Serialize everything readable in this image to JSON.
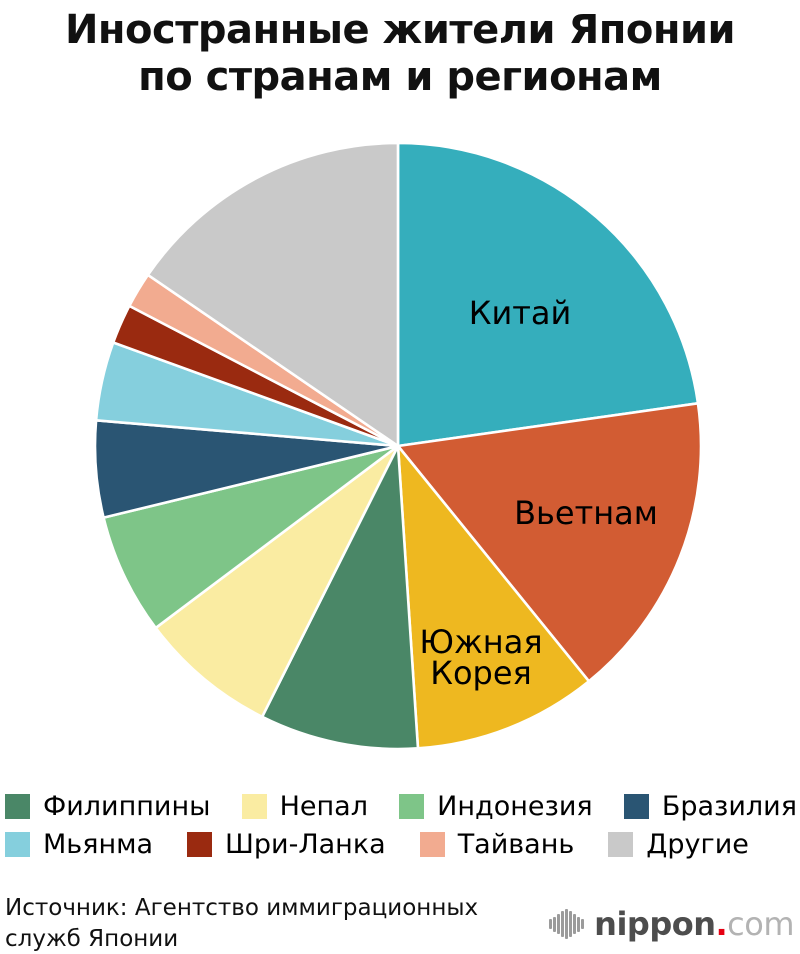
{
  "title": {
    "line1": "Иностранные жители Японии",
    "line2": "по странам и регионам"
  },
  "chart_data": {
    "type": "pie",
    "title": "Иностранные жители Японии по странам и регионам",
    "start_angle_deg": 0,
    "direction": "clockwise",
    "values_are": "percent, estimated from slice angles (no numbers printed on chart)",
    "slices": [
      {
        "label": "Китай",
        "value_pct": 22.75,
        "color": "#35aebc",
        "labeled_on_pie": true
      },
      {
        "label": "Вьетнам",
        "value_pct": 16.4,
        "color": "#d25c33",
        "labeled_on_pie": true
      },
      {
        "label": "Южная Корея",
        "value_pct": 9.8,
        "color": "#eeb820",
        "labeled_on_pie": true
      },
      {
        "label": "Филиппины",
        "value_pct": 8.45,
        "color": "#4a8767",
        "labeled_on_pie": false
      },
      {
        "label": "Непал",
        "value_pct": 7.35,
        "color": "#faeca2",
        "labeled_on_pie": false
      },
      {
        "label": "Индонезия",
        "value_pct": 6.45,
        "color": "#7ec588",
        "labeled_on_pie": false
      },
      {
        "label": "Бразилия",
        "value_pct": 5.15,
        "color": "#2a5573",
        "labeled_on_pie": false
      },
      {
        "label": "Мьянма",
        "value_pct": 4.2,
        "color": "#85cfdd",
        "labeled_on_pie": false
      },
      {
        "label": "Шри-Ланка",
        "value_pct": 2.1,
        "color": "#9a2a10",
        "labeled_on_pie": false
      },
      {
        "label": "Тайвань",
        "value_pct": 1.9,
        "color": "#f2ab90",
        "labeled_on_pie": false
      },
      {
        "label": "Другие",
        "value_pct": 15.45,
        "color": "#c9c9c9",
        "labeled_on_pie": false
      }
    ],
    "legend_position": "bottom",
    "source": "Источник: Агентство иммиграционных служб Японии"
  },
  "pie_labels": {
    "china": "Китай",
    "vietnam": "Вьетнам",
    "korea_line1": "Южная",
    "korea_line2": "Корея"
  },
  "legend": {
    "items": [
      {
        "label": "Филиппины",
        "color": "#4a8767"
      },
      {
        "label": "Непал",
        "color": "#faeca2"
      },
      {
        "label": "Индонезия",
        "color": "#7ec588"
      },
      {
        "label": "Бразилия",
        "color": "#2a5573"
      },
      {
        "label": "Мьянма",
        "color": "#85cfdd"
      },
      {
        "label": "Шри-Ланка",
        "color": "#9a2a10"
      },
      {
        "label": "Тайвань",
        "color": "#f2ab90"
      },
      {
        "label": "Другие",
        "color": "#c9c9c9"
      }
    ]
  },
  "source": {
    "line1": "Источник: Агентство иммиграционных",
    "line2": "служб Японии"
  },
  "logo": {
    "brand": "nippon",
    "dot": ".",
    "tld": "com",
    "colors": {
      "mark": "#9b9b9b",
      "brand": "#4d4d4d",
      "dot": "#e60012",
      "tld": "#b3b3b3"
    }
  }
}
